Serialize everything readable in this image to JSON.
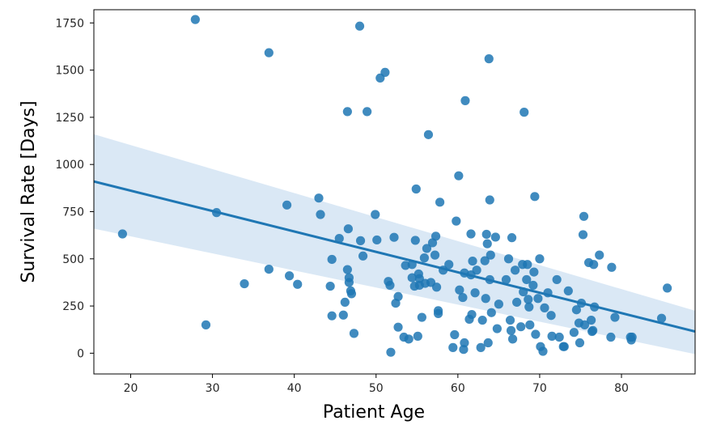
{
  "chart_data": {
    "type": "scatter",
    "xlabel": "Patient Age",
    "ylabel": "Survival Rate [Days]",
    "xlim": [
      15.5,
      89
    ],
    "ylim": [
      -110,
      1820
    ],
    "x_ticks": [
      20,
      30,
      40,
      50,
      60,
      70,
      80
    ],
    "y_ticks": [
      0,
      250,
      500,
      750,
      1000,
      1250,
      1500,
      1750
    ],
    "grid": false,
    "colors": {
      "points": "#1f77b4",
      "line": "#1f77b4",
      "band": "#c6dbef"
    },
    "regression": {
      "x": [
        15.5,
        89
      ],
      "y": [
        910,
        115
      ]
    },
    "confidence_band": {
      "x": [
        15.5,
        89
      ],
      "upper": [
        1160,
        225
      ],
      "lower": [
        660,
        -5
      ]
    },
    "points": [
      [
        19,
        632
      ],
      [
        27.9,
        1768
      ],
      [
        29.2,
        150
      ],
      [
        30.5,
        745
      ],
      [
        33.9,
        368
      ],
      [
        36.9,
        1592
      ],
      [
        36.9,
        445
      ],
      [
        39.1,
        785
      ],
      [
        39.4,
        410
      ],
      [
        40.4,
        365
      ],
      [
        43,
        822
      ],
      [
        43.2,
        735
      ],
      [
        44.4,
        355
      ],
      [
        44.6,
        497
      ],
      [
        44.6,
        198
      ],
      [
        45.5,
        608
      ],
      [
        46,
        202
      ],
      [
        46.2,
        270
      ],
      [
        46.5,
        443
      ],
      [
        46.5,
        1280
      ],
      [
        46.6,
        659
      ],
      [
        46.7,
        400
      ],
      [
        46.7,
        375
      ],
      [
        46.9,
        330
      ],
      [
        47,
        315
      ],
      [
        47.3,
        105
      ],
      [
        48,
        1733
      ],
      [
        48.1,
        596
      ],
      [
        48.4,
        515
      ],
      [
        48.9,
        1280
      ],
      [
        49.9,
        735
      ],
      [
        50.1,
        600
      ],
      [
        50.5,
        1458
      ],
      [
        51.1,
        1488
      ],
      [
        51.5,
        380
      ],
      [
        51.7,
        360
      ],
      [
        51.8,
        5
      ],
      [
        52.2,
        614
      ],
      [
        52.4,
        265
      ],
      [
        52.7,
        300
      ],
      [
        52.7,
        138
      ],
      [
        53.4,
        85
      ],
      [
        53.6,
        465
      ],
      [
        54,
        75
      ],
      [
        54.4,
        470
      ],
      [
        54.4,
        400
      ],
      [
        54.7,
        355
      ],
      [
        54.8,
        598
      ],
      [
        54.9,
        870
      ],
      [
        55.1,
        90
      ],
      [
        55.2,
        420
      ],
      [
        55.3,
        395
      ],
      [
        55.3,
        360
      ],
      [
        55.6,
        190
      ],
      [
        55.9,
        505
      ],
      [
        56,
        370
      ],
      [
        56.2,
        555
      ],
      [
        56.4,
        1158
      ],
      [
        56.7,
        375
      ],
      [
        56.9,
        585
      ],
      [
        57.2,
        520
      ],
      [
        57.3,
        620
      ],
      [
        57.4,
        350
      ],
      [
        57.6,
        225
      ],
      [
        57.6,
        210
      ],
      [
        57.8,
        800
      ],
      [
        58.2,
        440
      ],
      [
        58.9,
        470
      ],
      [
        59.4,
        30
      ],
      [
        59.6,
        98
      ],
      [
        59.8,
        700
      ],
      [
        60.1,
        940
      ],
      [
        60.2,
        335
      ],
      [
        60.6,
        295
      ],
      [
        60.7,
        20
      ],
      [
        60.8,
        55
      ],
      [
        60.8,
        425
      ],
      [
        60.9,
        1338
      ],
      [
        61.4,
        180
      ],
      [
        61.6,
        632
      ],
      [
        61.6,
        415
      ],
      [
        61.7,
        205
      ],
      [
        61.8,
        488
      ],
      [
        62.1,
        320
      ],
      [
        62.3,
        440
      ],
      [
        62.8,
        30
      ],
      [
        63,
        175
      ],
      [
        63.3,
        490
      ],
      [
        63.4,
        290
      ],
      [
        63.5,
        630
      ],
      [
        63.6,
        580
      ],
      [
        63.7,
        55
      ],
      [
        63.8,
        1560
      ],
      [
        63.9,
        812
      ],
      [
        63.9,
        390
      ],
      [
        64,
        520
      ],
      [
        64.1,
        215
      ],
      [
        64.6,
        615
      ],
      [
        64.8,
        130
      ],
      [
        65,
        260
      ],
      [
        65.9,
        390
      ],
      [
        66.2,
        500
      ],
      [
        66.4,
        175
      ],
      [
        66.5,
        120
      ],
      [
        66.6,
        612
      ],
      [
        66.7,
        75
      ],
      [
        67,
        440
      ],
      [
        67.2,
        270
      ],
      [
        67.7,
        140
      ],
      [
        67.9,
        470
      ],
      [
        68,
        325
      ],
      [
        68.1,
        1277
      ],
      [
        68.4,
        390
      ],
      [
        68.5,
        470
      ],
      [
        68.6,
        285
      ],
      [
        68.7,
        245
      ],
      [
        68.8,
        150
      ],
      [
        69.2,
        360
      ],
      [
        69.3,
        430
      ],
      [
        69.4,
        830
      ],
      [
        69.5,
        100
      ],
      [
        69.8,
        290
      ],
      [
        70,
        500
      ],
      [
        70.1,
        35
      ],
      [
        70.4,
        10
      ],
      [
        70.6,
        240
      ],
      [
        71,
        320
      ],
      [
        71.4,
        200
      ],
      [
        71.5,
        90
      ],
      [
        72.1,
        390
      ],
      [
        72.4,
        85
      ],
      [
        72.9,
        35
      ],
      [
        73,
        35
      ],
      [
        73.5,
        330
      ],
      [
        74.2,
        110
      ],
      [
        74.5,
        230
      ],
      [
        74.8,
        160
      ],
      [
        74.9,
        55
      ],
      [
        75.1,
        265
      ],
      [
        75.3,
        628
      ],
      [
        75.4,
        725
      ],
      [
        75.5,
        150
      ],
      [
        76,
        480
      ],
      [
        76.3,
        175
      ],
      [
        76.4,
        115
      ],
      [
        76.5,
        120
      ],
      [
        76.6,
        470
      ],
      [
        76.7,
        245
      ],
      [
        77.3,
        520
      ],
      [
        78.7,
        85
      ],
      [
        78.8,
        455
      ],
      [
        79.2,
        190
      ],
      [
        81.1,
        85
      ],
      [
        81.2,
        70
      ],
      [
        81.3,
        85
      ],
      [
        84.9,
        185
      ],
      [
        85.6,
        345
      ]
    ]
  }
}
